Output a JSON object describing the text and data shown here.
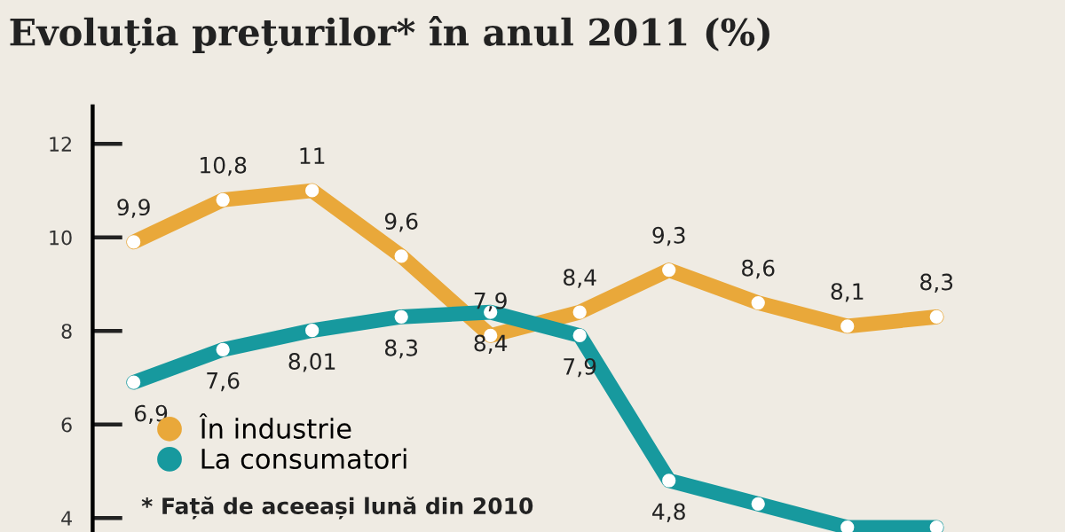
{
  "chart_data": {
    "type": "line",
    "title": "Evoluția prețurilor* în anul 2011 (%)",
    "categories": [
      null,
      null,
      null,
      null,
      null,
      null,
      null,
      null,
      null,
      null
    ],
    "series": [
      {
        "name": "În industrie",
        "color": "#e9a83a",
        "values": [
          9.9,
          10.8,
          11,
          9.6,
          7.9,
          8.4,
          9.3,
          8.6,
          8.1,
          8.3
        ],
        "value_labels": [
          "9,9",
          "10,8",
          "11",
          "9,6",
          "7,9",
          "8,4",
          "9,3",
          "8,6",
          "8,1",
          "8,3"
        ]
      },
      {
        "name": "La consumatori",
        "color": "#17999e",
        "values": [
          6.9,
          7.6,
          8.01,
          8.3,
          8.4,
          7.9,
          4.8,
          4.3,
          3.8,
          3.8
        ],
        "value_labels": [
          "6,9",
          "7,6",
          "8,01",
          "8,3",
          "8,4",
          "7,9",
          "4,8",
          null,
          null,
          null
        ]
      }
    ],
    "ylim": [
      3.7,
      12.8
    ],
    "yticks": [
      4,
      6,
      8,
      10,
      12
    ],
    "grid": false,
    "legend": "bottom left",
    "marker": "circle",
    "line_style": "solid",
    "annotations": [
      "* Față de aceeași lună din 2010"
    ]
  }
}
